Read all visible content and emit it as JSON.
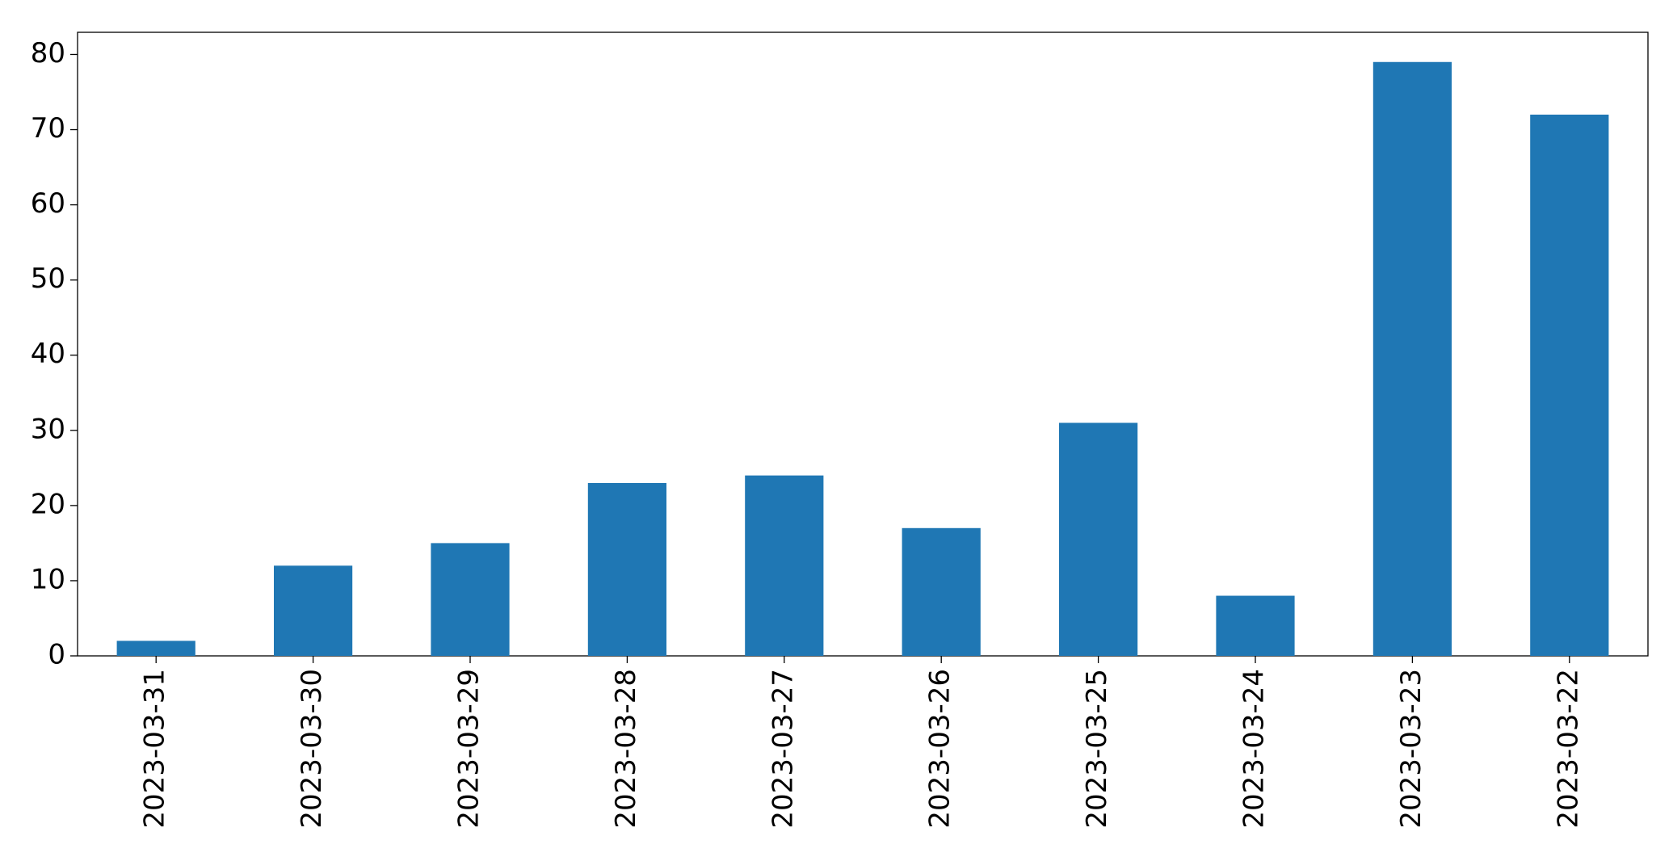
{
  "chart_data": {
    "type": "bar",
    "categories": [
      "2023-03-31",
      "2023-03-30",
      "2023-03-29",
      "2023-03-28",
      "2023-03-27",
      "2023-03-26",
      "2023-03-25",
      "2023-03-24",
      "2023-03-23",
      "2023-03-22"
    ],
    "values": [
      2,
      12,
      15,
      23,
      24,
      17,
      31,
      8,
      79,
      72
    ],
    "color": "#1f77b4",
    "ylim": [
      0,
      82.95
    ],
    "yticks": [
      0,
      10,
      20,
      30,
      40,
      50,
      60,
      70,
      80
    ],
    "grid": false
  }
}
